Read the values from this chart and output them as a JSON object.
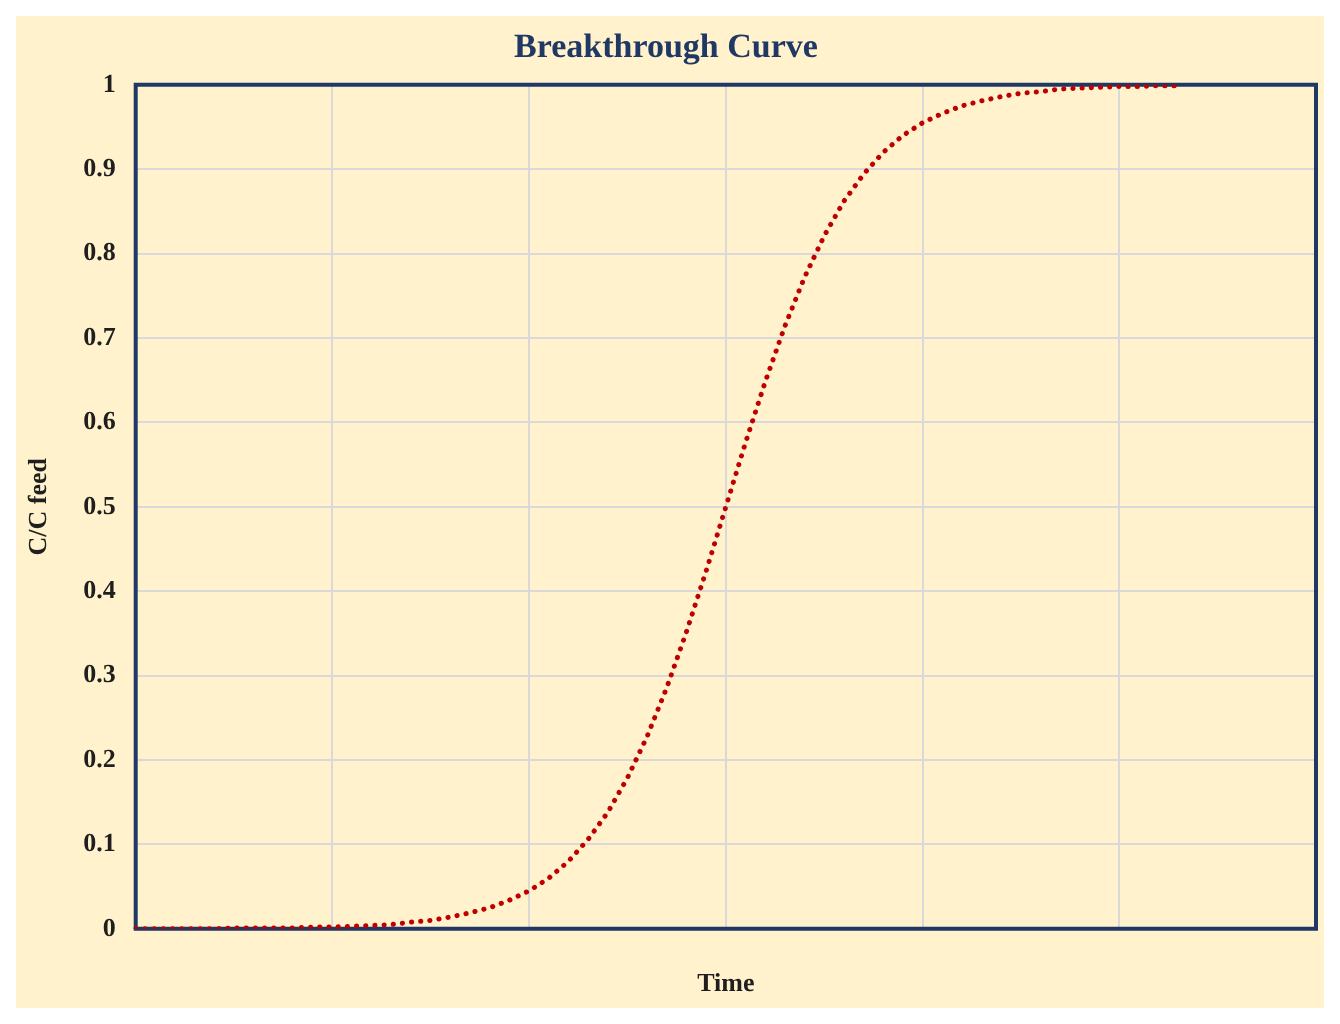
{
  "chart_data": {
    "type": "line",
    "title": "Breakthrough Curve",
    "xlabel": "Time",
    "ylabel": "C/C feed",
    "categories": [
      null,
      null,
      null,
      null,
      null,
      null,
      null,
      null,
      null,
      null,
      null,
      null,
      null,
      null,
      null,
      null,
      null,
      null,
      null,
      null,
      null,
      null,
      null,
      null,
      null,
      null,
      null,
      null,
      null,
      null,
      null,
      null,
      null,
      null,
      null,
      null,
      null,
      null,
      null,
      null,
      null,
      null,
      null,
      null,
      null,
      null,
      null,
      null,
      null,
      null,
      null,
      null,
      null,
      null,
      null,
      null,
      null,
      null,
      null,
      null,
      null
    ],
    "series": [
      {
        "color": "#c00000",
        "values": [
          0,
          0,
          0,
          0,
          0,
          0.001,
          0.001,
          0.001,
          0.001,
          0.002,
          0.002,
          0.003,
          0.004,
          0.005,
          0.008,
          0.01,
          0.014,
          0.019,
          0.025,
          0.034,
          0.045,
          0.06,
          0.08,
          0.106,
          0.138,
          0.179,
          0.228,
          0.286,
          0.352,
          0.424,
          0.5,
          0.576,
          0.648,
          0.714,
          0.772,
          0.821,
          0.862,
          0.894,
          0.92,
          0.94,
          0.955,
          0.966,
          0.975,
          0.981,
          0.986,
          0.99,
          0.992,
          0.995,
          0.996,
          0.997,
          0.998,
          0.998,
          0.999,
          0.999,
          null,
          null,
          null,
          null,
          null,
          null,
          null
        ]
      }
    ],
    "ylim": [
      0,
      1
    ],
    "yticks": [
      0,
      0.1,
      0.2,
      0.3,
      0.4,
      0.5,
      0.6,
      0.7,
      0.8,
      0.9,
      1
    ],
    "grid": true,
    "legend": false,
    "marker": "none",
    "line_style": "dotted"
  }
}
